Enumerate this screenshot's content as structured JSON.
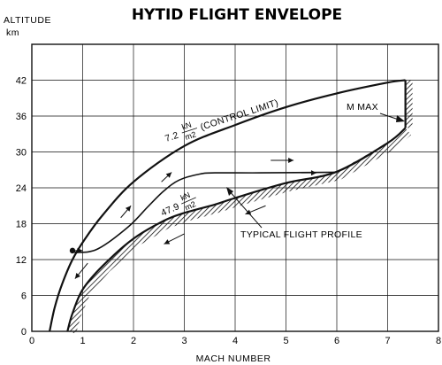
{
  "chart_data": {
    "type": "line",
    "title": "HYTID FLIGHT ENVELOPE",
    "ylabel": "ALTITUDE",
    "yunit": "km",
    "xlabel": "MACH NUMBER",
    "xlim": [
      0,
      8
    ],
    "ylim": [
      0,
      48
    ],
    "xticks": [
      0,
      1,
      2,
      3,
      4,
      5,
      6,
      7,
      8
    ],
    "yticks": [
      0,
      6,
      12,
      18,
      24,
      30,
      36,
      42
    ],
    "grid": true,
    "series": [
      {
        "key": "control_limit",
        "label_main": "7.2",
        "label_num": "kN",
        "label_den": "m2",
        "label_suffix": "(CONTROL LIMIT)",
        "x": [
          0.35,
          0.45,
          0.6,
          0.8,
          1.05,
          1.4,
          2.0,
          3.0,
          4.0,
          5.0,
          6.0,
          7.0,
          7.35
        ],
        "y": [
          0,
          4,
          8,
          12,
          15.5,
          19.5,
          25,
          31,
          34.5,
          37.5,
          39.8,
          41.6,
          42
        ]
      },
      {
        "key": "heating_limit",
        "label_main": "47.9",
        "label_num": "kN",
        "label_den": "m2",
        "x": [
          0.7,
          0.8,
          1.0,
          1.4,
          2.0,
          2.6,
          3.0,
          3.6,
          4.0,
          5.0,
          6.0,
          7.0,
          7.35
        ],
        "y": [
          0,
          3,
          7,
          11,
          15.5,
          18.5,
          19.8,
          21.2,
          22.3,
          24.8,
          26.7,
          31.5,
          34
        ]
      },
      {
        "key": "max_mach",
        "label": "M MAX",
        "x": [
          7.35,
          7.35
        ],
        "y": [
          34,
          42
        ]
      },
      {
        "key": "typical_flight_profile",
        "label": "TYPICAL FLIGHT PROFILE",
        "x": [
          0.8,
          0.9,
          1.3,
          1.9,
          2.3,
          2.6,
          2.9,
          3.3,
          3.6,
          4.5,
          6.0
        ],
        "y": [
          13.5,
          13.2,
          13.8,
          17.5,
          21.0,
          23.5,
          25.3,
          26.3,
          26.5,
          26.5,
          26.6
        ]
      }
    ]
  }
}
